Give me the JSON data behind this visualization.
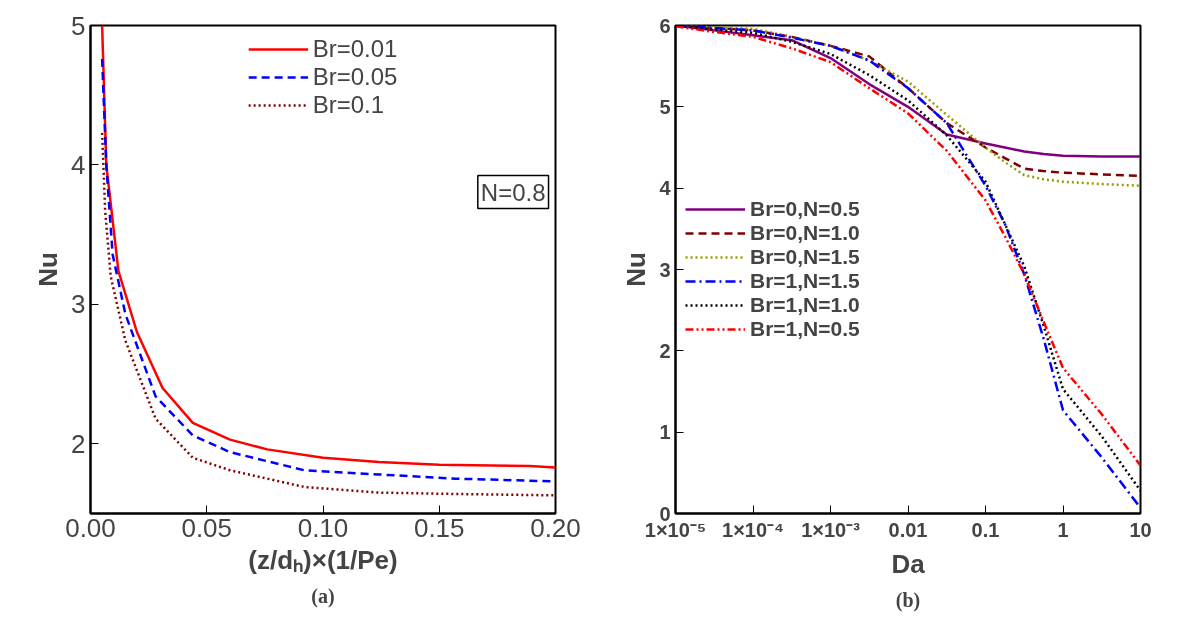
{
  "chart_data": [
    {
      "type": "line",
      "xlabel": "(z/dₕ)×(1/Pe)",
      "ylabel": "Nu",
      "xlim": [
        0,
        0.2
      ],
      "ylim": [
        1.5,
        5
      ],
      "xticks": [
        {
          "value": 0,
          "label": "0.00"
        },
        {
          "value": 0.05,
          "label": "0.05"
        },
        {
          "value": 0.1,
          "label": "0.10"
        },
        {
          "value": 0.15,
          "label": "0.15"
        },
        {
          "value": 0.2,
          "label": "0.20"
        }
      ],
      "yticks": [
        2,
        3,
        4,
        5
      ],
      "legend": "top",
      "grid": false,
      "annotations": [
        "N=0.8",
        "(a)"
      ],
      "series": [
        {
          "name": "Br=0.01",
          "color": "#ff0000",
          "line_style": "solid",
          "x": [
            0.005,
            0.0068,
            0.012,
            0.02,
            0.031,
            0.044,
            0.06,
            0.076,
            0.1,
            0.124,
            0.15,
            0.189,
            0.2
          ],
          "values": [
            5.0,
            4.0,
            3.24,
            2.8,
            2.4,
            2.15,
            2.03,
            1.96,
            1.9,
            1.87,
            1.85,
            1.84,
            1.83
          ]
        },
        {
          "name": "Br=0.05",
          "color": "#0000ff",
          "line_style": "dashed",
          "x": [
            0.005,
            0.0068,
            0.0095,
            0.015,
            0.028,
            0.044,
            0.06,
            0.092,
            0.124,
            0.157,
            0.2
          ],
          "values": [
            4.76,
            4.0,
            3.36,
            2.93,
            2.34,
            2.06,
            1.94,
            1.81,
            1.78,
            1.75,
            1.73
          ]
        },
        {
          "name": "Br=0.1",
          "color": "#800000",
          "line_style": "dotted",
          "x": [
            0.005,
            0.0063,
            0.0087,
            0.015,
            0.028,
            0.044,
            0.06,
            0.092,
            0.124,
            0.157,
            0.2
          ],
          "values": [
            4.23,
            3.67,
            3.2,
            2.74,
            2.18,
            1.9,
            1.81,
            1.69,
            1.65,
            1.64,
            1.63
          ]
        }
      ]
    },
    {
      "type": "line",
      "xlabel": "Da",
      "ylabel": "Nu",
      "log": "x",
      "xlim": [
        1e-05,
        10
      ],
      "ylim": [
        0,
        6
      ],
      "xticks": [
        {
          "value": 1e-05,
          "label": "1×10⁻⁵"
        },
        {
          "value": 0.0001,
          "label": "1×10⁻⁴"
        },
        {
          "value": 0.001,
          "label": "1×10⁻³"
        },
        {
          "value": 0.01,
          "label": "0.01"
        },
        {
          "value": 0.1,
          "label": "0.1"
        },
        {
          "value": 1,
          "label": "1"
        },
        {
          "value": 10,
          "label": "10"
        }
      ],
      "yticks": [
        0,
        1,
        2,
        3,
        4,
        5,
        6
      ],
      "legend": "left",
      "grid": false,
      "annotations": [
        "(b)"
      ],
      "x": [
        1e-05,
        3.16e-05,
        0.0001,
        0.000316,
        0.001,
        0.00316,
        0.01,
        0.0316,
        0.1,
        0.178,
        0.316,
        0.562,
        1,
        3.16,
        10
      ],
      "series": [
        {
          "name": "Br=0,N=0.5",
          "color": "#800080",
          "line_style": "solid",
          "values": [
            6.0,
            5.94,
            5.88,
            5.82,
            5.6,
            5.28,
            5.0,
            4.66,
            4.55,
            4.5,
            4.45,
            4.42,
            4.4,
            4.39,
            4.39
          ]
        },
        {
          "name": "Br=0,N=1.0",
          "color": "#800000",
          "line_style": "dashed",
          "values": [
            6.0,
            5.97,
            5.94,
            5.86,
            5.75,
            5.62,
            5.23,
            4.8,
            4.5,
            4.37,
            4.24,
            4.21,
            4.19,
            4.17,
            4.15
          ]
        },
        {
          "name": "Br=0,N=1.5",
          "color": "#999900",
          "line_style": "dotted",
          "values": [
            6.0,
            5.98,
            5.96,
            5.86,
            5.75,
            5.57,
            5.31,
            4.9,
            4.5,
            4.32,
            4.16,
            4.11,
            4.08,
            4.05,
            4.03
          ]
        },
        {
          "name": "Br=1,N=1.5",
          "color": "#0000ff",
          "line_style": "dashdot",
          "values": [
            6.0,
            5.97,
            5.94,
            5.85,
            5.75,
            5.57,
            5.23,
            4.8,
            4.03,
            3.56,
            2.94,
            2.15,
            1.27,
            0.69,
            0.07
          ]
        },
        {
          "name": "Br=1,N=1.0",
          "color": "#000000",
          "line_style": "dotted",
          "values": [
            6.0,
            5.95,
            5.91,
            5.8,
            5.65,
            5.39,
            5.08,
            4.65,
            4.08,
            3.56,
            3.04,
            2.31,
            1.53,
            0.95,
            0.28
          ]
        },
        {
          "name": "Br=1,N=0.5",
          "color": "#ff0000",
          "line_style": "dashdotdot",
          "values": [
            5.99,
            5.92,
            5.86,
            5.72,
            5.55,
            5.23,
            4.92,
            4.46,
            3.85,
            3.41,
            2.94,
            2.36,
            1.79,
            1.22,
            0.59
          ]
        }
      ]
    }
  ]
}
